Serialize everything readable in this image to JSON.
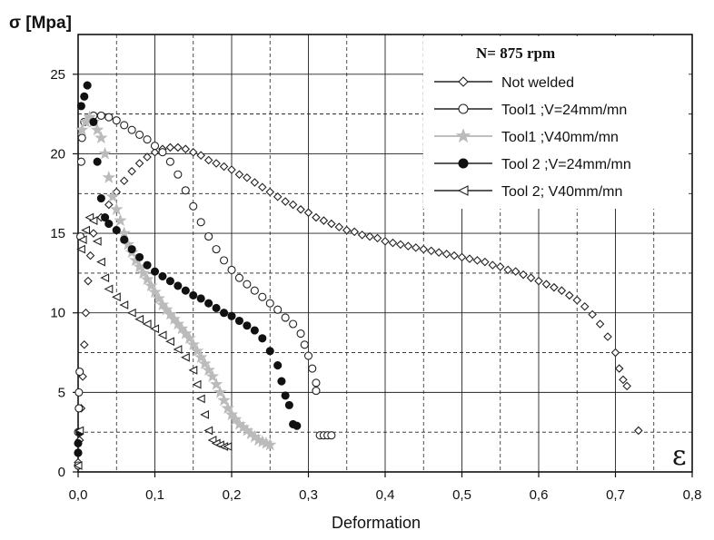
{
  "chart_data": {
    "type": "scatter",
    "ylabel": "σ [Mpa]",
    "xlabel": "Deformation",
    "axis_symbol": "ε",
    "legend_title": "N= 875 rpm",
    "legend_position": "top-right",
    "grid": true,
    "xlim": [
      0,
      0.8
    ],
    "ylim": [
      0,
      27.5
    ],
    "x_ticks": [
      "0,0",
      "0,1",
      "0,2",
      "0,3",
      "0,4",
      "0,5",
      "0,6",
      "0,7",
      "0,8"
    ],
    "y_ticks": [
      "0",
      "5",
      "10",
      "15",
      "20",
      "25"
    ],
    "series": [
      {
        "name": "Not welded",
        "marker": "diamond",
        "fill": "#ffffff",
        "stroke": "#222222",
        "points": [
          [
            0.0,
            0.6
          ],
          [
            0.002,
            2
          ],
          [
            0.004,
            4
          ],
          [
            0.006,
            6
          ],
          [
            0.008,
            8
          ],
          [
            0.01,
            10
          ],
          [
            0.013,
            12
          ],
          [
            0.016,
            13.6
          ],
          [
            0.02,
            15
          ],
          [
            0.03,
            16
          ],
          [
            0.04,
            16.8
          ],
          [
            0.05,
            17.6
          ],
          [
            0.06,
            18.3
          ],
          [
            0.07,
            18.9
          ],
          [
            0.08,
            19.4
          ],
          [
            0.09,
            19.8
          ],
          [
            0.1,
            20.1
          ],
          [
            0.11,
            20.3
          ],
          [
            0.12,
            20.4
          ],
          [
            0.13,
            20.4
          ],
          [
            0.14,
            20.3
          ],
          [
            0.15,
            20.1
          ],
          [
            0.16,
            19.9
          ],
          [
            0.17,
            19.6
          ],
          [
            0.18,
            19.4
          ],
          [
            0.19,
            19.2
          ],
          [
            0.2,
            19.0
          ],
          [
            0.21,
            18.7
          ],
          [
            0.22,
            18.5
          ],
          [
            0.23,
            18.2
          ],
          [
            0.24,
            17.9
          ],
          [
            0.25,
            17.6
          ],
          [
            0.26,
            17.3
          ],
          [
            0.27,
            17.0
          ],
          [
            0.28,
            16.8
          ],
          [
            0.29,
            16.5
          ],
          [
            0.3,
            16.3
          ],
          [
            0.31,
            16.0
          ],
          [
            0.32,
            15.8
          ],
          [
            0.33,
            15.6
          ],
          [
            0.34,
            15.4
          ],
          [
            0.35,
            15.2
          ],
          [
            0.36,
            15.1
          ],
          [
            0.37,
            14.9
          ],
          [
            0.38,
            14.8
          ],
          [
            0.39,
            14.7
          ],
          [
            0.4,
            14.5
          ],
          [
            0.41,
            14.4
          ],
          [
            0.42,
            14.3
          ],
          [
            0.43,
            14.2
          ],
          [
            0.44,
            14.1
          ],
          [
            0.45,
            14.0
          ],
          [
            0.46,
            13.9
          ],
          [
            0.47,
            13.8
          ],
          [
            0.48,
            13.7
          ],
          [
            0.49,
            13.6
          ],
          [
            0.5,
            13.5
          ],
          [
            0.51,
            13.4
          ],
          [
            0.52,
            13.3
          ],
          [
            0.53,
            13.2
          ],
          [
            0.54,
            13.0
          ],
          [
            0.55,
            12.9
          ],
          [
            0.56,
            12.7
          ],
          [
            0.57,
            12.6
          ],
          [
            0.58,
            12.4
          ],
          [
            0.59,
            12.2
          ],
          [
            0.6,
            12.0
          ],
          [
            0.61,
            11.8
          ],
          [
            0.62,
            11.6
          ],
          [
            0.63,
            11.4
          ],
          [
            0.64,
            11.1
          ],
          [
            0.65,
            10.8
          ],
          [
            0.66,
            10.4
          ],
          [
            0.67,
            9.9
          ],
          [
            0.68,
            9.3
          ],
          [
            0.69,
            8.5
          ],
          [
            0.7,
            7.5
          ],
          [
            0.705,
            6.5
          ],
          [
            0.71,
            5.8
          ],
          [
            0.715,
            5.4
          ],
          [
            0.73,
            2.6
          ]
        ]
      },
      {
        "name": "Tool1 ;V=24mm/mn",
        "marker": "circle",
        "fill": "#ffffff",
        "stroke": "#222222",
        "points": [
          [
            0.0,
            0.4
          ],
          [
            0.0,
            1.2
          ],
          [
            0.0,
            2.5
          ],
          [
            0.001,
            4
          ],
          [
            0.001,
            5
          ],
          [
            0.002,
            6.3
          ],
          [
            0.003,
            14.8
          ],
          [
            0.004,
            19.5
          ],
          [
            0.005,
            21
          ],
          [
            0.008,
            22
          ],
          [
            0.02,
            22.4
          ],
          [
            0.03,
            22.4
          ],
          [
            0.04,
            22.3
          ],
          [
            0.05,
            22.1
          ],
          [
            0.06,
            21.8
          ],
          [
            0.07,
            21.5
          ],
          [
            0.08,
            21.2
          ],
          [
            0.09,
            20.9
          ],
          [
            0.1,
            20.5
          ],
          [
            0.11,
            20.1
          ],
          [
            0.12,
            19.5
          ],
          [
            0.13,
            18.7
          ],
          [
            0.14,
            17.7
          ],
          [
            0.15,
            16.7
          ],
          [
            0.16,
            15.7
          ],
          [
            0.17,
            14.8
          ],
          [
            0.18,
            14.0
          ],
          [
            0.19,
            13.3
          ],
          [
            0.2,
            12.7
          ],
          [
            0.21,
            12.2
          ],
          [
            0.22,
            11.8
          ],
          [
            0.23,
            11.4
          ],
          [
            0.24,
            11.0
          ],
          [
            0.25,
            10.6
          ],
          [
            0.26,
            10.2
          ],
          [
            0.27,
            9.7
          ],
          [
            0.28,
            9.3
          ],
          [
            0.29,
            8.7
          ],
          [
            0.295,
            8.0
          ],
          [
            0.3,
            7.3
          ],
          [
            0.305,
            6.5
          ],
          [
            0.31,
            5.6
          ],
          [
            0.31,
            5.1
          ],
          [
            0.315,
            2.3
          ],
          [
            0.32,
            2.3
          ],
          [
            0.325,
            2.3
          ],
          [
            0.33,
            2.3
          ]
        ]
      },
      {
        "name": "Tool1 ;V40mm/mn",
        "marker": "star",
        "fill": "#bbbbbb",
        "stroke": "#bbbbbb",
        "points": [
          [
            0.005,
            21.5
          ],
          [
            0.01,
            22
          ],
          [
            0.015,
            22.3
          ],
          [
            0.02,
            22
          ],
          [
            0.025,
            21.5
          ],
          [
            0.03,
            21
          ],
          [
            0.035,
            20
          ],
          [
            0.04,
            18.5
          ],
          [
            0.045,
            17.3
          ],
          [
            0.05,
            16.5
          ],
          [
            0.055,
            15.8
          ],
          [
            0.06,
            15
          ],
          [
            0.065,
            14.3
          ],
          [
            0.07,
            13.8
          ],
          [
            0.075,
            13.3
          ],
          [
            0.08,
            12.9
          ],
          [
            0.085,
            12.5
          ],
          [
            0.09,
            12.1
          ],
          [
            0.095,
            11.7
          ],
          [
            0.1,
            11.3
          ],
          [
            0.105,
            10.9
          ],
          [
            0.11,
            10.5
          ],
          [
            0.115,
            10.2
          ],
          [
            0.12,
            9.9
          ],
          [
            0.125,
            9.6
          ],
          [
            0.13,
            9.3
          ],
          [
            0.135,
            9.0
          ],
          [
            0.14,
            8.7
          ],
          [
            0.145,
            8.4
          ],
          [
            0.15,
            8.0
          ],
          [
            0.155,
            7.6
          ],
          [
            0.16,
            7.2
          ],
          [
            0.165,
            6.8
          ],
          [
            0.17,
            6.4
          ],
          [
            0.175,
            6.0
          ],
          [
            0.18,
            5.5
          ],
          [
            0.185,
            5.0
          ],
          [
            0.19,
            4.5
          ],
          [
            0.195,
            4.0
          ],
          [
            0.2,
            3.6
          ],
          [
            0.205,
            3.3
          ],
          [
            0.21,
            3.0
          ],
          [
            0.215,
            2.8
          ],
          [
            0.22,
            2.6
          ],
          [
            0.225,
            2.4
          ],
          [
            0.23,
            2.2
          ],
          [
            0.235,
            2.0
          ],
          [
            0.24,
            1.9
          ],
          [
            0.245,
            1.8
          ],
          [
            0.25,
            1.7
          ]
        ]
      },
      {
        "name": "Tool 2 ;V=24mm/mn",
        "marker": "filled-circle",
        "fill": "#111111",
        "stroke": "#111111",
        "points": [
          [
            0.0,
            1.2
          ],
          [
            0.0,
            1.8
          ],
          [
            0.002,
            2.5
          ],
          [
            0.004,
            23
          ],
          [
            0.008,
            23.6
          ],
          [
            0.012,
            24.3
          ],
          [
            0.02,
            22
          ],
          [
            0.025,
            19.5
          ],
          [
            0.03,
            17.2
          ],
          [
            0.035,
            16
          ],
          [
            0.04,
            15.6
          ],
          [
            0.05,
            15.2
          ],
          [
            0.06,
            14.6
          ],
          [
            0.07,
            14.0
          ],
          [
            0.08,
            13.5
          ],
          [
            0.09,
            13.0
          ],
          [
            0.1,
            12.6
          ],
          [
            0.11,
            12.3
          ],
          [
            0.12,
            12.0
          ],
          [
            0.13,
            11.7
          ],
          [
            0.14,
            11.4
          ],
          [
            0.15,
            11.1
          ],
          [
            0.16,
            10.9
          ],
          [
            0.17,
            10.6
          ],
          [
            0.18,
            10.3
          ],
          [
            0.19,
            10.0
          ],
          [
            0.2,
            9.8
          ],
          [
            0.21,
            9.5
          ],
          [
            0.22,
            9.2
          ],
          [
            0.23,
            8.9
          ],
          [
            0.24,
            8.4
          ],
          [
            0.25,
            7.6
          ],
          [
            0.26,
            6.7
          ],
          [
            0.265,
            5.7
          ],
          [
            0.27,
            4.8
          ],
          [
            0.275,
            4.2
          ],
          [
            0.28,
            3.0
          ],
          [
            0.285,
            2.9
          ]
        ]
      },
      {
        "name": "Tool 2; V40mm/mn",
        "marker": "triangle-left",
        "fill": "#ffffff",
        "stroke": "#222222",
        "points": [
          [
            0.0,
            0.4
          ],
          [
            0.002,
            2.6
          ],
          [
            0.004,
            14
          ],
          [
            0.006,
            14.6
          ],
          [
            0.01,
            15.2
          ],
          [
            0.015,
            16
          ],
          [
            0.02,
            15.8
          ],
          [
            0.025,
            14.5
          ],
          [
            0.03,
            13.2
          ],
          [
            0.035,
            12.2
          ],
          [
            0.04,
            11.5
          ],
          [
            0.05,
            11
          ],
          [
            0.06,
            10.5
          ],
          [
            0.07,
            10
          ],
          [
            0.08,
            9.6
          ],
          [
            0.09,
            9.3
          ],
          [
            0.1,
            9.0
          ],
          [
            0.11,
            8.6
          ],
          [
            0.12,
            8.2
          ],
          [
            0.13,
            7.7
          ],
          [
            0.14,
            7.2
          ],
          [
            0.15,
            6.4
          ],
          [
            0.155,
            5.5
          ],
          [
            0.16,
            4.6
          ],
          [
            0.165,
            3.6
          ],
          [
            0.17,
            2.6
          ],
          [
            0.175,
            2.0
          ],
          [
            0.18,
            1.8
          ],
          [
            0.185,
            1.7
          ],
          [
            0.19,
            1.6
          ],
          [
            0.195,
            1.6
          ]
        ]
      }
    ]
  }
}
